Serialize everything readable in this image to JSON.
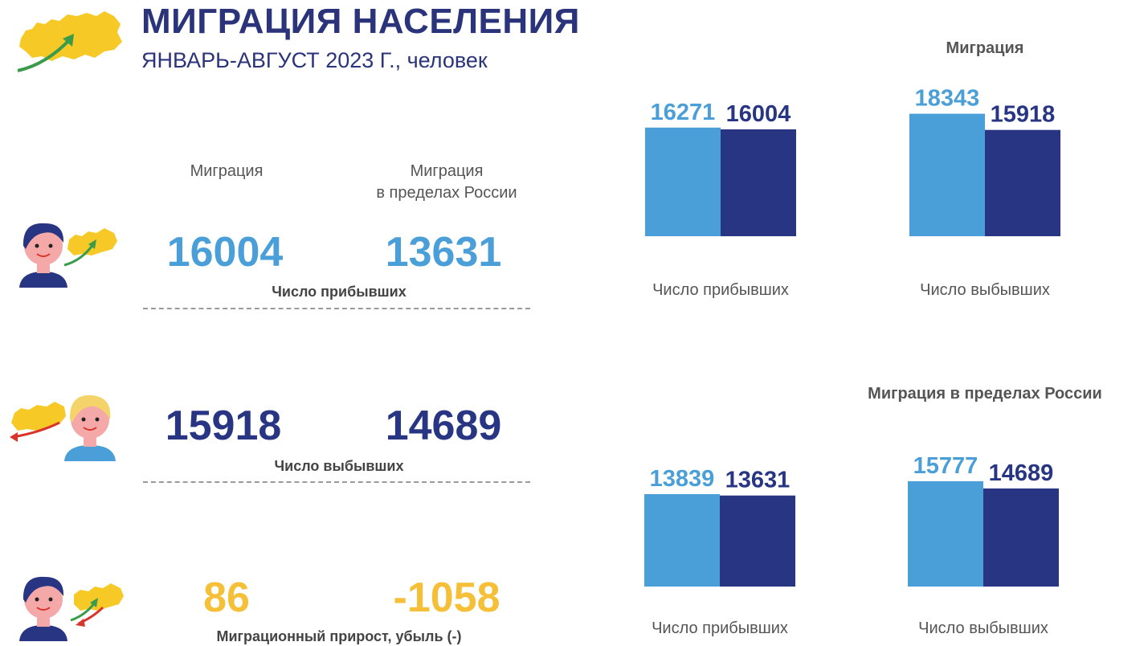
{
  "header": {
    "title": "МИГРАЦИЯ НАСЕЛЕНИЯ",
    "subtitle": "ЯНВАРЬ-АВГУСТ 2023 Г., человек"
  },
  "summary": {
    "col1_header": "Миграция",
    "col2_header_line1": "Миграция",
    "col2_header_line2": "в пределах России",
    "arrivals": {
      "col1": "16004",
      "col2": "13631",
      "label": "Число прибывших"
    },
    "departures": {
      "col1": "15918",
      "col2": "14689",
      "label": "Число выбывших"
    },
    "growth": {
      "col1": "86",
      "col2": "-1058",
      "label": "Миграционный прирост, убыль (-)"
    }
  },
  "colors": {
    "light_blue": "#4a9fd8",
    "dark_blue": "#283583",
    "gold": "#f5c038",
    "map_yellow": "#f7c927",
    "arrow_green": "#3a9b4a",
    "arrow_red": "#d9342b"
  },
  "icons": [
    "russia-map-icon",
    "person-dark-hair-icon",
    "person-blond-icon",
    "arrow-icon"
  ],
  "chart_data": [
    {
      "type": "bar",
      "title": "Миграция",
      "groups": [
        {
          "category": "Число прибывших",
          "values": [
            16271,
            16004
          ],
          "labels": [
            "16271",
            "16004"
          ]
        },
        {
          "category": "Число выбывших",
          "values": [
            18343,
            15918
          ],
          "labels": [
            "18343",
            "15918"
          ]
        }
      ],
      "series_colors": [
        "#4a9fd8",
        "#283583"
      ]
    },
    {
      "type": "bar",
      "title": "Миграция в пределах России",
      "groups": [
        {
          "category": "Число прибывших",
          "values": [
            13839,
            13631
          ],
          "labels": [
            "13839",
            "13631"
          ]
        },
        {
          "category": "Число выбывших",
          "values": [
            15777,
            14689
          ],
          "labels": [
            "15777",
            "14689"
          ]
        }
      ],
      "series_colors": [
        "#4a9fd8",
        "#283583"
      ]
    }
  ]
}
